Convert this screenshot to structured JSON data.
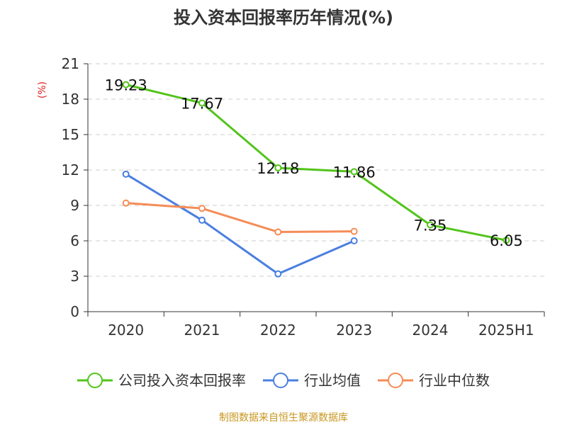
{
  "chart_data": {
    "type": "line",
    "title": "投入资本回报率历年情况(%)",
    "ylabel": "(%)",
    "categories": [
      "2020",
      "2021",
      "2022",
      "2023",
      "2024",
      "2025H1"
    ],
    "ylim": [
      0,
      21
    ],
    "yticks": [
      0,
      3,
      6,
      9,
      12,
      15,
      18,
      21
    ],
    "grid": true,
    "legend_position": "bottom",
    "series": [
      {
        "name": "公司投入资本回报率",
        "color": "#52c41a",
        "values": [
          19.23,
          17.67,
          12.18,
          11.86,
          7.35,
          6.05
        ],
        "labels": [
          "19.23",
          "17.67",
          "12.18",
          "11.86",
          "7.35",
          "6.05"
        ]
      },
      {
        "name": "行业均值",
        "color": "#4a7fe0",
        "values": [
          11.65,
          7.75,
          3.2,
          6.0,
          null,
          null
        ]
      },
      {
        "name": "行业中位数",
        "color": "#f58c57",
        "values": [
          9.2,
          8.75,
          6.75,
          6.8,
          null,
          null
        ]
      }
    ]
  },
  "footer": {
    "source": "制图数据来自恒生聚源数据库"
  }
}
